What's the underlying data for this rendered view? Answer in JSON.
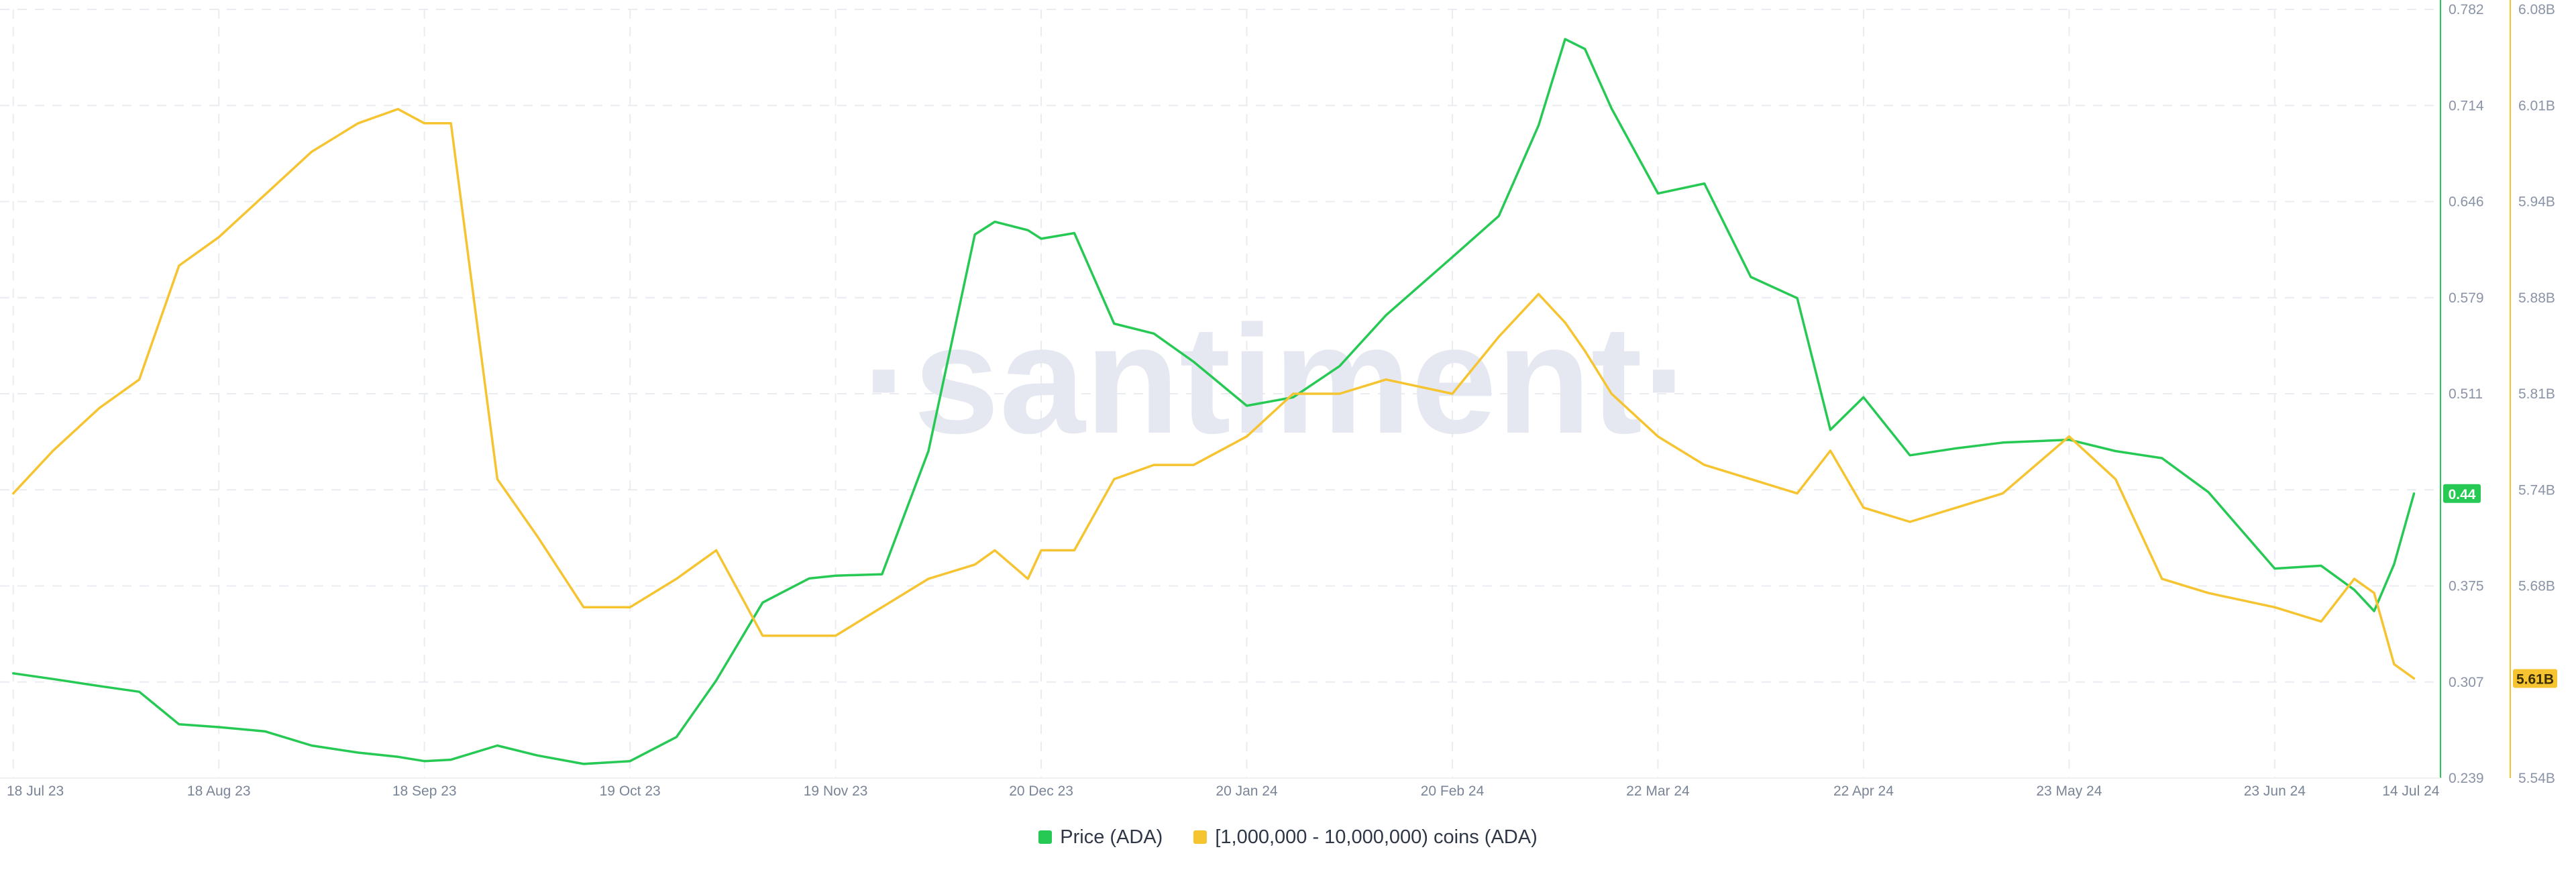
{
  "chart_data": {
    "type": "line",
    "title": "",
    "watermark": "·santiment·",
    "x": [
      "2023-07-18",
      "2023-07-24",
      "2023-07-31",
      "2023-08-06",
      "2023-08-12",
      "2023-08-18",
      "2023-08-25",
      "2023-09-01",
      "2023-09-08",
      "2023-09-14",
      "2023-09-18",
      "2023-09-22",
      "2023-09-29",
      "2023-10-05",
      "2023-10-12",
      "2023-10-19",
      "2023-10-26",
      "2023-11-01",
      "2023-11-08",
      "2023-11-15",
      "2023-11-19",
      "2023-11-26",
      "2023-12-03",
      "2023-12-10",
      "2023-12-13",
      "2023-12-18",
      "2023-12-20",
      "2023-12-25",
      "2023-12-31",
      "2024-01-06",
      "2024-01-12",
      "2024-01-20",
      "2024-01-27",
      "2024-02-03",
      "2024-02-10",
      "2024-02-20",
      "2024-02-27",
      "2024-03-04",
      "2024-03-08",
      "2024-03-11",
      "2024-03-15",
      "2024-03-22",
      "2024-03-29",
      "2024-04-05",
      "2024-04-12",
      "2024-04-17",
      "2024-04-22",
      "2024-04-29",
      "2024-05-06",
      "2024-05-13",
      "2024-05-23",
      "2024-05-30",
      "2024-06-06",
      "2024-06-13",
      "2024-06-23",
      "2024-06-30",
      "2024-07-05",
      "2024-07-08",
      "2024-07-11",
      "2024-07-14"
    ],
    "series": [
      {
        "name": "Price (ADA)",
        "color": "#26c953",
        "axis": "right",
        "values": [
          0.313,
          0.309,
          0.304,
          0.3,
          0.277,
          0.275,
          0.272,
          0.262,
          0.257,
          0.254,
          0.251,
          0.252,
          0.262,
          0.255,
          0.249,
          0.251,
          0.268,
          0.308,
          0.363,
          0.38,
          0.382,
          0.383,
          0.47,
          0.623,
          0.632,
          0.626,
          0.62,
          0.624,
          0.56,
          0.553,
          0.533,
          0.502,
          0.508,
          0.53,
          0.566,
          0.607,
          0.636,
          0.7,
          0.761,
          0.754,
          0.712,
          0.652,
          0.659,
          0.593,
          0.578,
          0.485,
          0.508,
          0.467,
          0.472,
          0.476,
          0.478,
          0.47,
          0.465,
          0.441,
          0.387,
          0.389,
          0.372,
          0.357,
          0.39,
          0.44
        ]
      },
      {
        "name": "[1,000,000 - 10,000,000) coins (ADA)",
        "color": "#f5c430",
        "axis": "left",
        "values": [
          5.74,
          5.77,
          5.8,
          5.82,
          5.9,
          5.92,
          5.95,
          5.98,
          6.0,
          6.01,
          6.0,
          6.0,
          5.75,
          5.71,
          5.66,
          5.66,
          5.68,
          5.7,
          5.64,
          5.64,
          5.64,
          5.66,
          5.68,
          5.69,
          5.7,
          5.68,
          5.7,
          5.7,
          5.75,
          5.76,
          5.76,
          5.78,
          5.81,
          5.81,
          5.82,
          5.81,
          5.85,
          5.88,
          5.86,
          5.84,
          5.81,
          5.78,
          5.76,
          5.75,
          5.74,
          5.77,
          5.73,
          5.72,
          5.73,
          5.74,
          5.78,
          5.75,
          5.68,
          5.67,
          5.66,
          5.65,
          5.68,
          5.67,
          5.62,
          5.61
        ]
      }
    ],
    "x_ticks": [
      "18 Jul 23",
      "18 Aug 23",
      "18 Sep 23",
      "19 Oct 23",
      "19 Nov 23",
      "20 Dec 23",
      "20 Jan 24",
      "20 Feb 24",
      "22 Mar 24",
      "22 Apr 24",
      "23 May 24",
      "23 Jun 24",
      "14 Jul 24"
    ],
    "right_axis_ticks": [
      "0.782",
      "0.714",
      "0.646",
      "0.579",
      "0.511",
      "0.44",
      "0.375",
      "0.307",
      "0.239"
    ],
    "left_axis_ticks": [
      "6.08B",
      "6.01B",
      "5.94B",
      "5.88B",
      "5.81B",
      "5.74B",
      "5.68B",
      "5.61B",
      "5.54B"
    ],
    "right_ylim": [
      0.239,
      0.782
    ],
    "left_ylim": [
      5.54,
      6.08
    ],
    "current_labels": {
      "price": "0.44",
      "coins": "5.61B"
    },
    "grid": true,
    "legend_position": "bottom-center"
  }
}
